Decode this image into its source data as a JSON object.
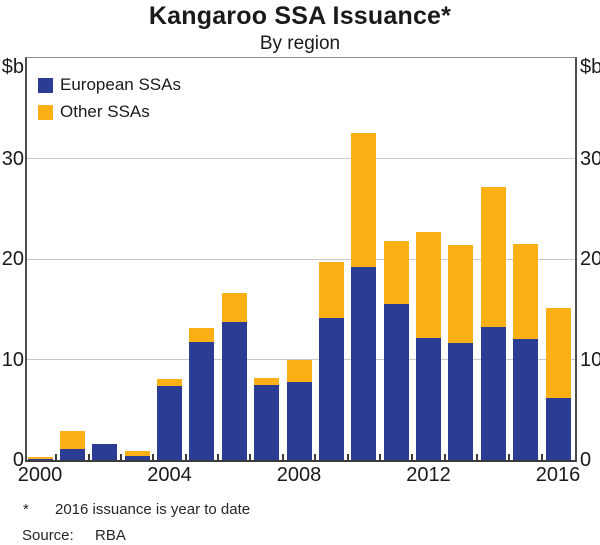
{
  "chart_data": {
    "type": "bar",
    "stacked": true,
    "title": "Kangaroo SSA Issuance*",
    "subtitle": "By region",
    "unit_label": "$b",
    "categories": [
      2000,
      2001,
      2002,
      2003,
      2004,
      2005,
      2006,
      2007,
      2008,
      2009,
      2010,
      2011,
      2012,
      2013,
      2014,
      2015,
      2016
    ],
    "series": [
      {
        "name": "European SSAs",
        "color": "#2A3C94",
        "values": [
          0.1,
          1.1,
          1.6,
          0.4,
          7.4,
          11.7,
          13.7,
          7.5,
          7.8,
          14.1,
          19.2,
          15.5,
          12.1,
          11.6,
          13.2,
          12.0,
          6.2
        ]
      },
      {
        "name": "Other SSAs",
        "color": "#FBB016",
        "values": [
          0.2,
          1.8,
          0.0,
          0.5,
          0.7,
          1.4,
          2.9,
          0.7,
          2.2,
          5.6,
          13.3,
          6.3,
          10.6,
          9.8,
          14.0,
          9.5,
          8.9
        ]
      }
    ],
    "ylim": [
      0,
      40
    ],
    "yticks": [
      0,
      10,
      20,
      30
    ],
    "x_labeled_years": [
      2000,
      2004,
      2008,
      2012,
      2016
    ],
    "grid": "horizontal",
    "legend_position": "top-left",
    "gridline_color": "#c8c8c8"
  },
  "footnote": {
    "marker": "*",
    "text": "2016 issuance is year to date"
  },
  "source": {
    "label": "Source:",
    "value": "RBA"
  }
}
